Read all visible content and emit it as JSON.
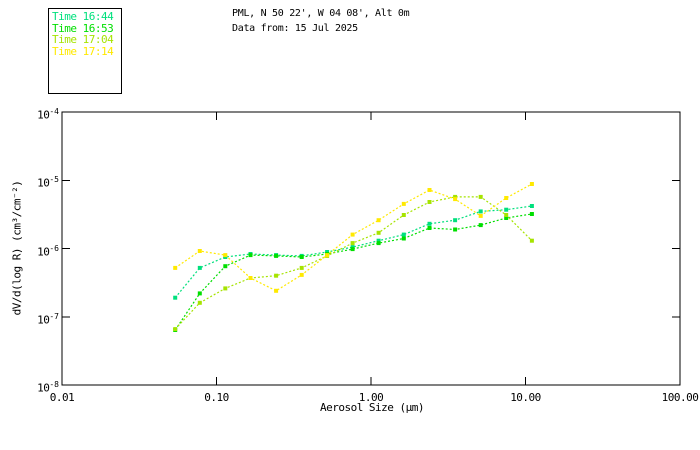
{
  "header": {
    "title_line1": "PML, N 50 22', W 04 08', Alt 0m",
    "title_line2": "Data from: 15 Jul 2025"
  },
  "chart_data": {
    "type": "line",
    "title": "PML, N 50 22', W 04 08', Alt 0m — Data from: 15 Jul 2025",
    "xlabel": "Aerosol Size (μm)",
    "ylabel": "dV/d(log R) (cm³/cm⁻²)",
    "xscale": "log",
    "yscale": "log",
    "xlim": [
      0.01,
      100.0
    ],
    "ylim": [
      1e-08,
      0.0001
    ],
    "grid": false,
    "marker": "square",
    "line_style": "dotted",
    "legend_position": "outside-top-left",
    "x_tick_labels": [
      "0.01",
      "0.10",
      "1.00",
      "10.00",
      "100.00"
    ],
    "x_tick_values": [
      0.01,
      0.1,
      1.0,
      10.0,
      100.0
    ],
    "y_tick_base": "10",
    "y_tick_exponents": [
      "-4",
      "-5",
      "-6",
      "-7",
      "-8"
    ],
    "y_tick_values": [
      0.0001,
      1e-05,
      1e-06,
      1e-07,
      1e-08
    ],
    "x": [
      0.054,
      0.078,
      0.114,
      0.166,
      0.243,
      0.356,
      0.52,
      0.76,
      1.12,
      1.63,
      2.39,
      3.5,
      5.13,
      7.5,
      11.0
    ],
    "series": [
      {
        "name": "Time 16:44",
        "color": "#00E07D",
        "values": [
          1.9e-07,
          5.2e-07,
          7.5e-07,
          8.3e-07,
          8e-07,
          7.8e-07,
          8.9e-07,
          1.05e-06,
          1.3e-06,
          1.6e-06,
          2.3e-06,
          2.6e-06,
          3.5e-06,
          3.7e-06,
          4.2e-06
        ]
      },
      {
        "name": "Time 16:53",
        "color": "#00DF00",
        "values": [
          6.4e-08,
          2.2e-07,
          5.5e-07,
          8e-07,
          7.8e-07,
          7.5e-07,
          8.3e-07,
          9.8e-07,
          1.2e-06,
          1.4e-06,
          2e-06,
          1.9e-06,
          2.2e-06,
          2.8e-06,
          3.2e-06
        ]
      },
      {
        "name": "Time 17:04",
        "color": "#A6E400",
        "values": [
          6.6e-08,
          1.6e-07,
          2.6e-07,
          3.7e-07,
          4e-07,
          5.2e-07,
          7.8e-07,
          1.2e-06,
          1.7e-06,
          3.1e-06,
          4.8e-06,
          5.7e-06,
          5.7e-06,
          3.1e-06,
          1.3e-06
        ]
      },
      {
        "name": "Time 17:14",
        "color": "#FFE900",
        "values": [
          5.2e-07,
          9.2e-07,
          8e-07,
          3.7e-07,
          2.4e-07,
          4.1e-07,
          8e-07,
          1.6e-06,
          2.6e-06,
          4.5e-06,
          7.2e-06,
          5.3e-06,
          3e-06,
          5.5e-06,
          8.8e-06
        ]
      }
    ]
  }
}
